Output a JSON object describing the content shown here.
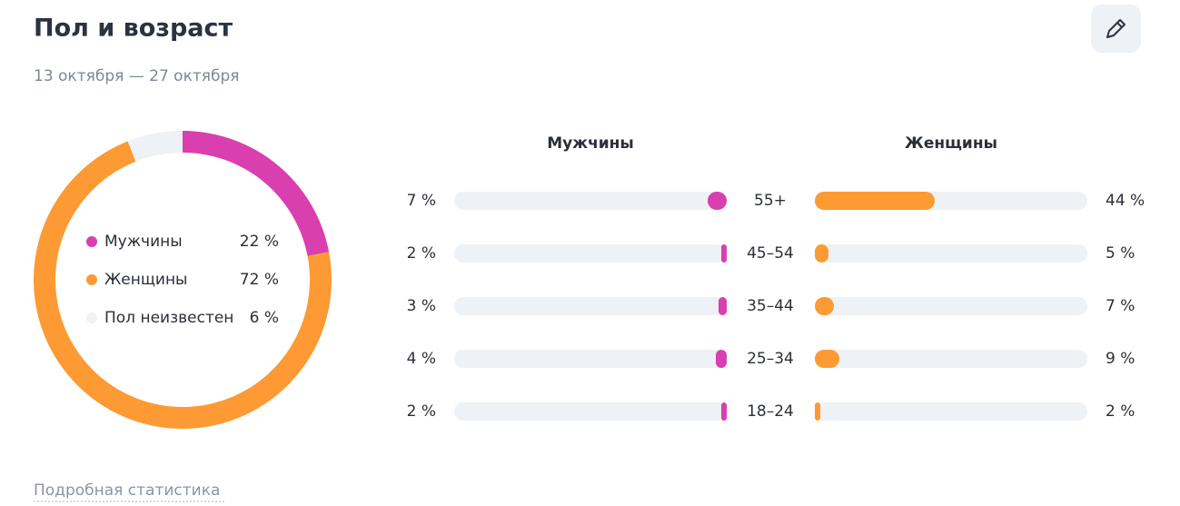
{
  "header": {
    "title": "Пол и возраст",
    "subtitle": "13 октября — 27 октября"
  },
  "chart_data": [
    {
      "type": "pie",
      "categories": [
        "Мужчины",
        "Женщины",
        "Пол неизвестен"
      ],
      "values": [
        22,
        72,
        6
      ],
      "value_labels": [
        "22 %",
        "72 %",
        "6 %"
      ],
      "colors": [
        "#d93fae",
        "#fd9a33",
        "#eef1f5"
      ]
    },
    {
      "type": "butterfly",
      "categories": [
        "55+",
        "45–54",
        "35–44",
        "25–34",
        "18–24"
      ],
      "xlim": [
        0,
        100
      ],
      "track_color": "#eef1f5",
      "series": [
        {
          "name": "Мужчины",
          "color": "#d93fae",
          "values": [
            7,
            2,
            3,
            4,
            2
          ],
          "value_labels": [
            "7 %",
            "2 %",
            "3 %",
            "4 %",
            "2 %"
          ]
        },
        {
          "name": "Женщины",
          "color": "#fd9a33",
          "values": [
            44,
            5,
            7,
            9,
            2
          ],
          "value_labels": [
            "44 %",
            "5 %",
            "7 %",
            "9 %",
            "2 %"
          ]
        }
      ]
    }
  ],
  "footer": {
    "link": "Подробная статистика"
  }
}
